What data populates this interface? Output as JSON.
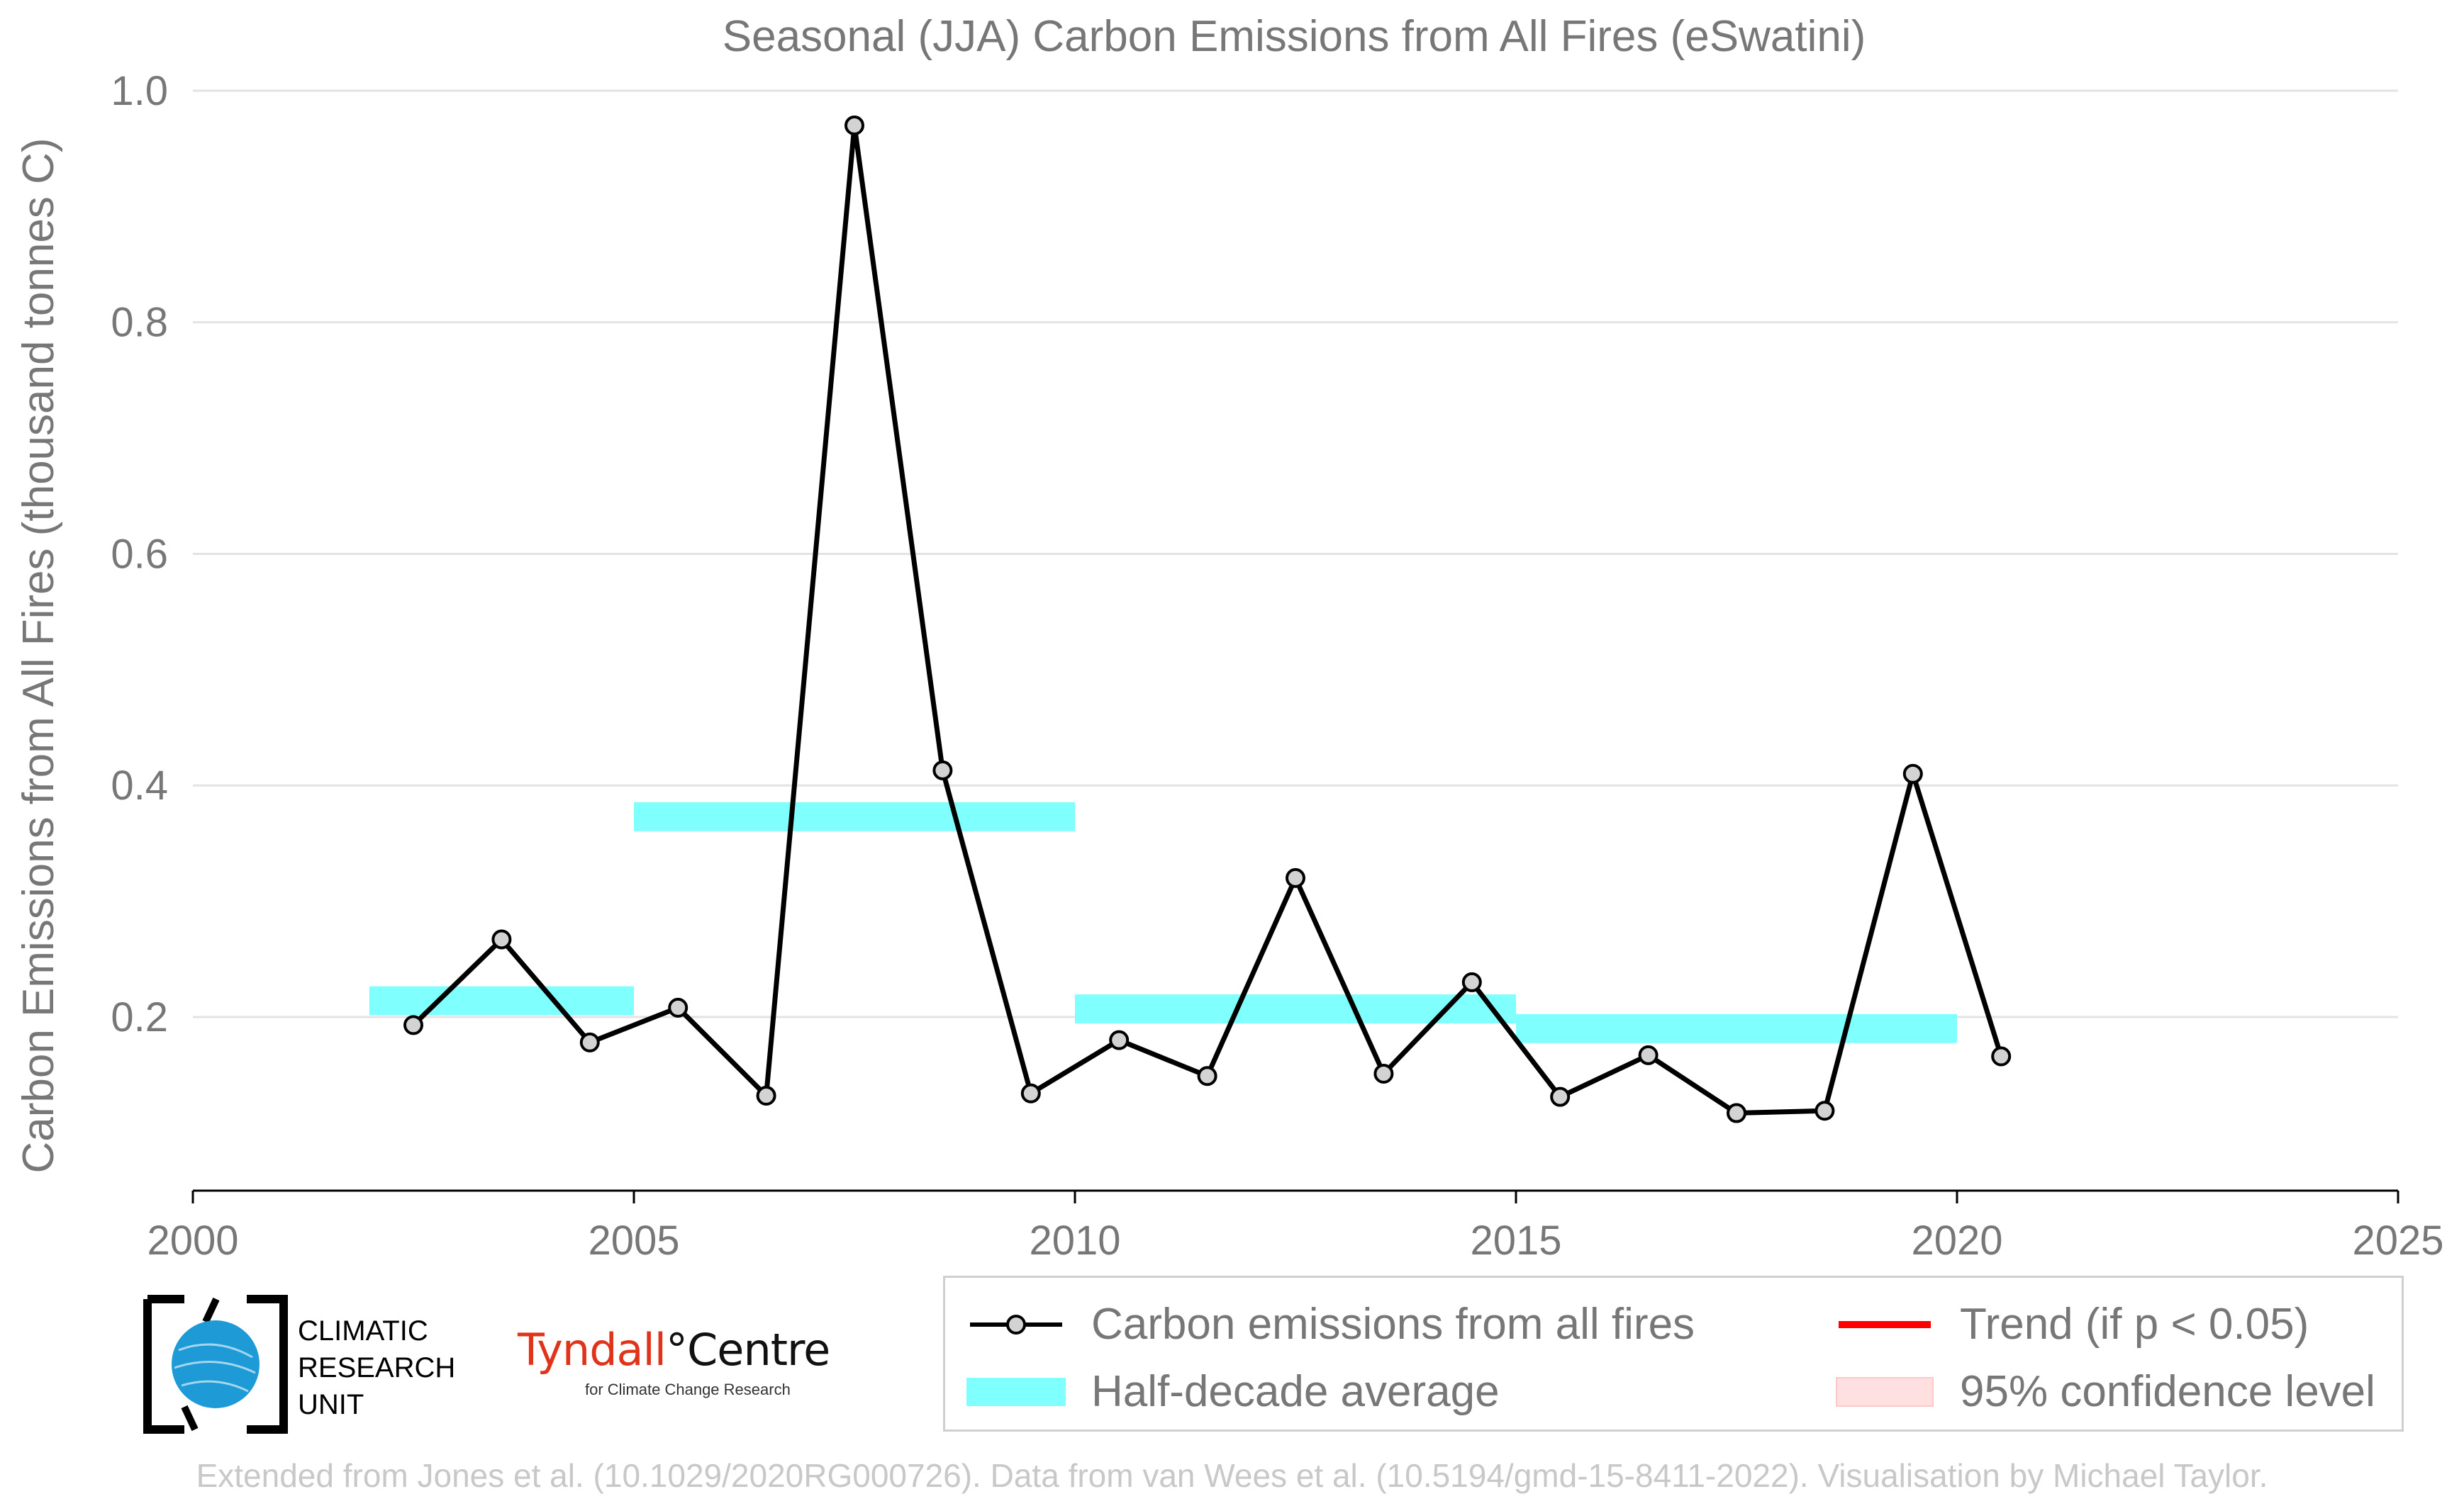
{
  "chart_data": {
    "type": "line",
    "title": "Seasonal (JJA) Carbon Emissions from All Fires (eSwatini)",
    "xlabel": "",
    "ylabel": "Carbon Emissions from All Fires (thousand tonnes C)",
    "xlim": [
      2000,
      2025
    ],
    "ylim": [
      0.05,
      1.0
    ],
    "xticks": [
      "2000",
      "2005",
      "2010",
      "2015",
      "2020",
      "2025"
    ],
    "yticks": [
      "0.2",
      "0.4",
      "0.6",
      "0.8",
      "1.0"
    ],
    "grid": "horizontal",
    "series": [
      {
        "name": "Carbon emissions from all fires",
        "color": "#000000",
        "marker_color": "#d3d3d3",
        "x": [
          2002.5,
          2003.5,
          2004.5,
          2005.5,
          2006.5,
          2007.5,
          2008.5,
          2009.5,
          2010.5,
          2011.5,
          2012.5,
          2013.5,
          2014.5,
          2015.5,
          2016.5,
          2017.5,
          2018.5,
          2019.5,
          2020.5
        ],
        "y": [
          0.193,
          0.267,
          0.178,
          0.208,
          0.132,
          0.97,
          0.413,
          0.134,
          0.18,
          0.149,
          0.32,
          0.151,
          0.23,
          0.131,
          0.167,
          0.117,
          0.119,
          0.41,
          0.166
        ]
      }
    ],
    "half_decade_average": {
      "name": "Half-decade average",
      "color": "#80ffff",
      "segments": [
        {
          "x0": 2002,
          "x1": 2005,
          "y": 0.214
        },
        {
          "x0": 2005,
          "x1": 2010,
          "y": 0.373
        },
        {
          "x0": 2010,
          "x1": 2015,
          "y": 0.207
        },
        {
          "x0": 2015,
          "x1": 2020,
          "y": 0.19
        }
      ]
    },
    "legend": {
      "placement": "bottom-right",
      "entries": [
        {
          "label": "Carbon emissions from all fires",
          "kind": "line-marker",
          "color": "#000000"
        },
        {
          "label": "Trend (if p < 0.05)",
          "kind": "line",
          "color": "#ff0000"
        },
        {
          "label": "Half-decade average",
          "kind": "band",
          "color": "#80ffff"
        },
        {
          "label": "95% confidence level",
          "kind": "band",
          "color": "#ffe0e0"
        }
      ]
    }
  },
  "logos": {
    "cru": {
      "line1": "CLIMATIC",
      "line2": "RESEARCH",
      "line3": "UNIT"
    },
    "tyndall": {
      "name": "Tyndall",
      "centre": "°Centre",
      "subtitle": "for Climate Change Research"
    }
  },
  "footnote": "Extended from Jones et al. (10.1029/2020RG000726). Data from van Wees et al. (10.5194/gmd-15-8411-2022). Visualisation by Michael Taylor."
}
